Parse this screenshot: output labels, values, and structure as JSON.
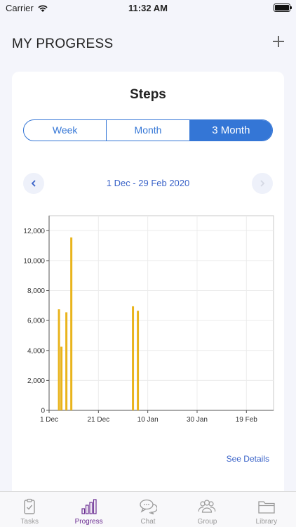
{
  "status_bar": {
    "carrier": "Carrier",
    "time": "11:32 AM"
  },
  "header": {
    "title": "MY PROGRESS",
    "add_icon": "plus-icon"
  },
  "card": {
    "title": "Steps",
    "segments": [
      {
        "label": "Week",
        "active": false
      },
      {
        "label": "Month",
        "active": false
      },
      {
        "label": "3 Month",
        "active": true
      }
    ],
    "date_range": "1 Dec - 29 Feb 2020",
    "see_details": "See Details"
  },
  "chart_data": {
    "type": "bar",
    "title": "",
    "xlabel": "",
    "ylabel": "",
    "x_tick_labels": [
      "1 Dec",
      "21 Dec",
      "10 Jan",
      "30 Jan",
      "19 Feb"
    ],
    "y_tick_labels": [
      "0",
      "2,000",
      "4,000",
      "6,000",
      "8,000",
      "10,000",
      "12,000"
    ],
    "ylim": [
      0,
      13000
    ],
    "xlim_days": [
      0,
      91
    ],
    "bar_color": "#e9b41c",
    "series": [
      {
        "values": [
          {
            "date": "2019-12-05",
            "steps": 6750
          },
          {
            "date": "2019-12-06",
            "steps": 4250
          },
          {
            "date": "2019-12-08",
            "steps": 6550
          },
          {
            "date": "2019-12-10",
            "steps": 11550
          },
          {
            "date": "2020-01-04",
            "steps": 6950
          },
          {
            "date": "2020-01-06",
            "steps": 6650
          }
        ]
      }
    ],
    "grid": true
  },
  "tabs": [
    {
      "label": "Tasks",
      "icon": "clipboard-check-icon",
      "active": false
    },
    {
      "label": "Progress",
      "icon": "bar-chart-icon",
      "active": true
    },
    {
      "label": "Chat",
      "icon": "chat-bubbles-icon",
      "active": false
    },
    {
      "label": "Group",
      "icon": "people-icon",
      "active": false
    },
    {
      "label": "Library",
      "icon": "folder-icon",
      "active": false
    }
  ],
  "colors": {
    "accent": "#3476d6",
    "bar": "#e9b41c",
    "active_tab": "#6a2c91",
    "link": "#3a63c8"
  }
}
